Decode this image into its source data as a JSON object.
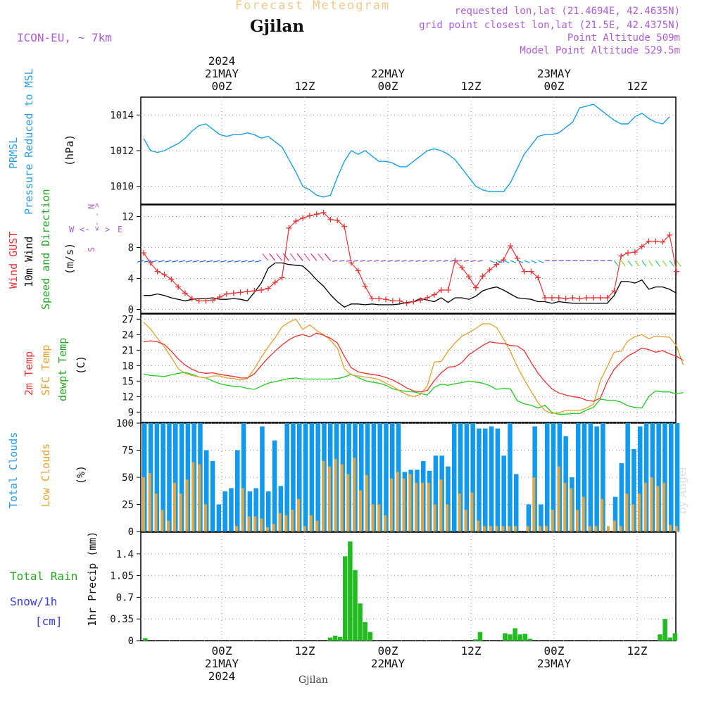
{
  "header": {
    "title": "Forecast Meteogram",
    "location": "Gjilan",
    "model": "ICON-EU, ~ 7km",
    "requested": "requested lon,lat (21.4694E, 42.4635N)",
    "gridpoint": "grid point closest lon,lat (21.5E, 42.4375N)",
    "altitude": "Point Altitude 509m",
    "model_altitude": "Model Point Altitude 529.5m",
    "footer_location": "Gjilan",
    "watermark": "by Angel"
  },
  "top_axis": {
    "year": "2024",
    "days": [
      "21MAY",
      "22MAY",
      "23MAY"
    ],
    "times": [
      "00Z",
      "12Z",
      "00Z",
      "12Z",
      "00Z",
      "12Z"
    ]
  },
  "bottom_axis": {
    "year": "2024",
    "days": [
      "21MAY",
      "22MAY",
      "23MAY"
    ],
    "times": [
      "00Z",
      "12Z",
      "00Z",
      "12Z",
      "00Z",
      "12Z"
    ]
  },
  "labels": {
    "pressure": [
      "PRMSL",
      "Pressure Reduced to MSL",
      "(hPa)"
    ],
    "wind": [
      "Wind GUST",
      "10m Wind",
      "Speed and Direction",
      "(m/s)"
    ],
    "compass": {
      "n": "N",
      "s": "S",
      "e": "E",
      "w": "W",
      "cross": "<- - >"
    },
    "temp": [
      "2m Temp",
      "SFC Temp",
      "dewpt Temp",
      "(C)"
    ],
    "cloud": [
      "Total Clouds",
      "Low Clouds",
      "(%)"
    ],
    "precip": [
      "Total Rain",
      "Snow/1h",
      "[cm]",
      "1hr Precip (mm)"
    ]
  },
  "colors": {
    "pressure": "#1aa0e8",
    "gust": "#ee3333",
    "wind": "#000000",
    "t2m": "#ee3333",
    "tsfc": "#e8a030",
    "dew": "#22cc22",
    "total_cloud": "#1199ee",
    "low_cloud": "#d9a648",
    "rain": "#22bb22",
    "title": "#f2c88a",
    "meta": "#b05cd9",
    "label_blue": "#2a9fe8",
    "label_green": "#22aa22",
    "label_red": "#ee3333",
    "label_orange": "#e8a030",
    "label_snow": "#3a3aee"
  },
  "chart_data": [
    {
      "type": "line",
      "name": "PRMSL",
      "ylim": [
        1009,
        1015
      ],
      "yticks": [
        "1010",
        "1012",
        "1014"
      ],
      "y": [
        1012.7,
        1012.0,
        1011.9,
        1012.0,
        1012.2,
        1012.4,
        1012.7,
        1013.1,
        1013.4,
        1013.5,
        1013.2,
        1012.9,
        1012.8,
        1012.9,
        1012.9,
        1013.0,
        1012.9,
        1012.7,
        1012.8,
        1012.5,
        1012.2,
        1011.5,
        1010.8,
        1010.0,
        1009.8,
        1009.5,
        1009.4,
        1009.5,
        1010.5,
        1011.4,
        1012.0,
        1011.8,
        1012.0,
        1011.7,
        1011.4,
        1011.4,
        1011.3,
        1011.1,
        1011.1,
        1011.4,
        1011.7,
        1012.0,
        1012.1,
        1012.0,
        1011.8,
        1011.5,
        1011.0,
        1010.5,
        1010.0,
        1009.8,
        1009.7,
        1009.7,
        1009.7,
        1010.2,
        1011.0,
        1011.8,
        1012.3,
        1012.8,
        1012.9,
        1012.9,
        1013.0,
        1013.3,
        1013.6,
        1014.4,
        1014.5,
        1014.6,
        1014.3,
        1014.0,
        1013.7,
        1013.5,
        1013.5,
        1013.9,
        1014.1,
        1013.8,
        1013.6,
        1013.5,
        1013.9
      ]
    },
    {
      "type": "line",
      "name": "Wind GUST / 10m Wind",
      "ylim": [
        -0.5,
        13.5
      ],
      "yticks": [
        "0",
        "4",
        "8",
        "12"
      ],
      "series": [
        {
          "name": "Wind GUST",
          "values": [
            7.3,
            6.0,
            4.9,
            4.5,
            3.9,
            2.9,
            2.1,
            1.4,
            1.1,
            1.1,
            1.2,
            1.6,
            2.0,
            2.1,
            2.2,
            2.3,
            2.4,
            2.5,
            2.7,
            3.5,
            4.1,
            10.5,
            11.4,
            11.8,
            12.1,
            12.3,
            12.5,
            11.6,
            11.5,
            10.7,
            6.0,
            5.0,
            3.0,
            1.4,
            1.4,
            1.3,
            1.1,
            1.1,
            0.8,
            1.0,
            1.2,
            1.5,
            1.9,
            2.5,
            2.5,
            6.3,
            5.4,
            4.2,
            2.8,
            4.3,
            5.1,
            5.8,
            6.4,
            8.2,
            6.6,
            4.9,
            4.9,
            4.1,
            1.5,
            1.5,
            1.5,
            1.4,
            1.5,
            1.4,
            1.5,
            1.5,
            1.5,
            1.5,
            2.4,
            6.9,
            7.3,
            7.4,
            8.1,
            8.8,
            8.8,
            8.7,
            9.6,
            4.9
          ]
        },
        {
          "name": "10m Wind",
          "values": [
            1.8,
            1.8,
            2.0,
            1.8,
            1.5,
            1.3,
            1.1,
            1.3,
            1.4,
            1.4,
            1.5,
            1.3,
            1.3,
            1.4,
            1.3,
            1.1,
            2.2,
            3.4,
            5.3,
            6.0,
            6.0,
            5.8,
            5.7,
            5.6,
            4.8,
            3.8,
            3.0,
            1.9,
            1.0,
            0.3,
            0.7,
            0.7,
            0.6,
            0.7,
            0.6,
            0.6,
            0.6,
            0.7,
            0.9,
            1.0,
            1.4,
            1.2,
            1.0,
            1.5,
            0.9,
            1.5,
            1.5,
            1.3,
            1.7,
            2.4,
            2.7,
            2.9,
            2.5,
            2.0,
            1.5,
            1.4,
            1.3,
            1.0,
            1.0,
            0.8,
            1.0,
            0.9,
            0.8,
            0.8,
            0.8,
            0.8,
            0.8,
            0.8,
            1.8,
            3.6,
            3.6,
            3.4,
            3.8,
            2.6,
            2.9,
            2.9,
            2.6,
            2.1
          ]
        }
      ]
    },
    {
      "type": "line",
      "name": "Temperature",
      "ylim": [
        7,
        28
      ],
      "yticks": [
        "9",
        "12",
        "15",
        "18",
        "21",
        "24",
        "27"
      ],
      "series": [
        {
          "name": "2m Temp",
          "values": [
            22.6,
            22.8,
            22.6,
            22.1,
            20.8,
            19.3,
            18.1,
            17.3,
            16.7,
            16.5,
            16.6,
            16.3,
            16.1,
            15.9,
            15.6,
            15.6,
            16.4,
            18.0,
            19.5,
            20.8,
            22.0,
            23.0,
            23.7,
            24.0,
            23.6,
            24.3,
            23.9,
            23.3,
            22.4,
            19.8,
            17.6,
            16.8,
            16.5,
            16.3,
            16.1,
            15.7,
            15.2,
            14.5,
            13.7,
            13.1,
            12.9,
            13.2,
            15.1,
            16.6,
            17.7,
            17.8,
            18.6,
            20.1,
            21.0,
            21.9,
            22.6,
            22.4,
            22.3,
            21.9,
            21.8,
            20.9,
            18.6,
            16.5,
            14.9,
            13.5,
            12.7,
            12.3,
            12.0,
            11.8,
            11.3,
            11.1,
            11.7,
            14.9,
            17.3,
            18.7,
            19.9,
            20.6,
            21.4,
            21.1,
            20.6,
            20.9,
            20.3,
            19.8,
            19.0
          ]
        },
        {
          "name": "SFC Temp",
          "values": [
            26.4,
            25.1,
            23.3,
            21.6,
            19.6,
            17.4,
            16.5,
            16.1,
            15.8,
            15.6,
            16.0,
            16.0,
            15.6,
            15.5,
            15.2,
            15.5,
            17.4,
            19.6,
            21.6,
            23.4,
            25.5,
            26.4,
            27.0,
            25.0,
            25.9,
            24.8,
            24.0,
            22.9,
            21.4,
            17.4,
            16.2,
            16.0,
            15.8,
            15.6,
            15.3,
            14.6,
            14.0,
            13.1,
            12.4,
            12.0,
            12.4,
            14.1,
            18.7,
            18.8,
            20.8,
            22.4,
            23.7,
            24.4,
            25.2,
            26.1,
            26.1,
            25.4,
            23.2,
            20.7,
            17.8,
            15.3,
            13.0,
            10.8,
            9.3,
            8.7,
            8.9,
            9.3,
            9.3,
            9.3,
            9.8,
            10.5,
            15.1,
            17.8,
            20.6,
            20.8,
            22.8,
            23.6,
            24.0,
            23.2,
            23.7,
            23.6,
            23.5,
            21.8,
            18.1
          ]
        },
        {
          "name": "dewpt Temp",
          "values": [
            16.4,
            16.1,
            16.0,
            15.9,
            16.2,
            16.5,
            16.7,
            16.3,
            15.8,
            15.6,
            15.0,
            14.5,
            14.2,
            14.0,
            13.9,
            13.6,
            13.4,
            14.0,
            14.6,
            14.9,
            15.2,
            15.5,
            15.6,
            15.4,
            15.4,
            15.4,
            15.4,
            15.4,
            15.5,
            15.8,
            16.3,
            15.7,
            15.1,
            14.8,
            14.6,
            14.2,
            13.5,
            13.2,
            13.0,
            12.9,
            12.6,
            12.3,
            13.8,
            14.4,
            14.2,
            14.5,
            14.7,
            15.0,
            14.8,
            14.6,
            14.1,
            13.4,
            13.6,
            13.5,
            11.2,
            10.6,
            10.3,
            9.8,
            10.3,
            8.9,
            8.6,
            8.6,
            8.7,
            8.7,
            9.4,
            9.9,
            11.5,
            11.3,
            11.3,
            10.9,
            10.2,
            9.9,
            9.8,
            12.0,
            13.1,
            12.9,
            12.9,
            12.5,
            12.8
          ]
        }
      ]
    },
    {
      "type": "bar",
      "name": "Clouds",
      "ylim": [
        0,
        100
      ],
      "yticks": [
        "0",
        "25",
        "50",
        "75",
        "100"
      ],
      "series": [
        {
          "name": "Total Clouds",
          "values": [
            100,
            100,
            100,
            100,
            100,
            100,
            100,
            100,
            100,
            100,
            75,
            65,
            25,
            37,
            40,
            75,
            100,
            37,
            40,
            97,
            37,
            84,
            42,
            100,
            100,
            100,
            100,
            100,
            100,
            100,
            100,
            100,
            100,
            100,
            100,
            100,
            100,
            100,
            100,
            100,
            100,
            100,
            55,
            57,
            57,
            65,
            56,
            70,
            70,
            60,
            100,
            100,
            100,
            100,
            95,
            95,
            97,
            95,
            70,
            100,
            53,
            0,
            25,
            97,
            25,
            100,
            100,
            100,
            88,
            50,
            100,
            100,
            100,
            97,
            100,
            2,
            32,
            63,
            100,
            76,
            97,
            100,
            100,
            100,
            100,
            100,
            100
          ]
        },
        {
          "name": "Low Clouds",
          "values": [
            50,
            54,
            35,
            20,
            10,
            45,
            35,
            48,
            64,
            62,
            25,
            0,
            0,
            0,
            0,
            5,
            40,
            14,
            14,
            12,
            4,
            7,
            17,
            15,
            20,
            30,
            5,
            15,
            10,
            65,
            60,
            67,
            62,
            53,
            68,
            38,
            52,
            25,
            25,
            15,
            49,
            55,
            49,
            53,
            45,
            45,
            45,
            25,
            48,
            25,
            0,
            35,
            20,
            36,
            10,
            5,
            5,
            5,
            5,
            5,
            5,
            0,
            5,
            50,
            5,
            5,
            20,
            60,
            45,
            40,
            20,
            32,
            5,
            5,
            30,
            5,
            10,
            5,
            35,
            25,
            35,
            45,
            50,
            42,
            45,
            6,
            5
          ]
        }
      ]
    },
    {
      "type": "bar",
      "name": "1hr Precip (mm)",
      "ylim": [
        0,
        1.75
      ],
      "yticks": [
        "0",
        "0.35",
        "0.7",
        "1.05",
        "1.4"
      ],
      "series": [
        {
          "name": "Total Rain",
          "values": [
            0.04,
            0,
            0,
            0,
            0,
            0,
            0,
            0,
            0,
            0,
            0,
            0,
            0,
            0,
            0,
            0,
            0,
            0,
            0,
            0,
            0,
            0,
            0,
            0,
            0,
            0,
            0,
            0,
            0,
            0,
            0,
            0,
            0,
            0,
            0,
            0,
            0,
            0.05,
            0.08,
            0.06,
            1.36,
            1.6,
            1.14,
            0.6,
            0.3,
            0.14,
            0,
            0,
            0,
            0,
            0,
            0,
            0,
            0,
            0,
            0,
            0,
            0,
            0,
            0,
            0,
            0,
            0,
            0,
            0,
            0,
            0.02,
            0.14,
            0,
            0,
            0,
            0,
            0.12,
            0.1,
            0.2,
            0.1,
            0.11,
            0.03,
            0,
            0,
            0,
            0,
            0,
            0,
            0,
            0,
            0,
            0,
            0,
            0,
            0,
            0,
            0,
            0,
            0,
            0,
            0,
            0,
            0,
            0,
            0,
            0,
            0,
            0.1,
            0.35,
            0.05,
            0.12
          ]
        }
      ]
    }
  ]
}
